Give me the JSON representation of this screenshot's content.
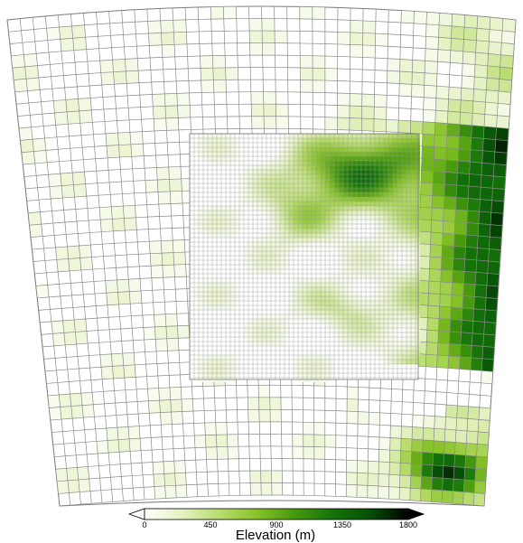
{
  "colorbar": {
    "title": "Elevation (m)",
    "ticks": [
      "0",
      "450",
      "900",
      "1350",
      "1800"
    ],
    "min": 0,
    "max": 1800,
    "colors": [
      "#ffffff",
      "#e4f2c2",
      "#b8dc6c",
      "#86c226",
      "#46980c",
      "#137409",
      "#064e06",
      "#000000"
    ],
    "extend": "both"
  },
  "map": {
    "outer_grid": "coarse curvilinear grid, uncolored over most of the domain",
    "nested_grid": "fine rectangular nested grid",
    "terrain_colormap": "white-to-green-to-black elevation shading"
  }
}
